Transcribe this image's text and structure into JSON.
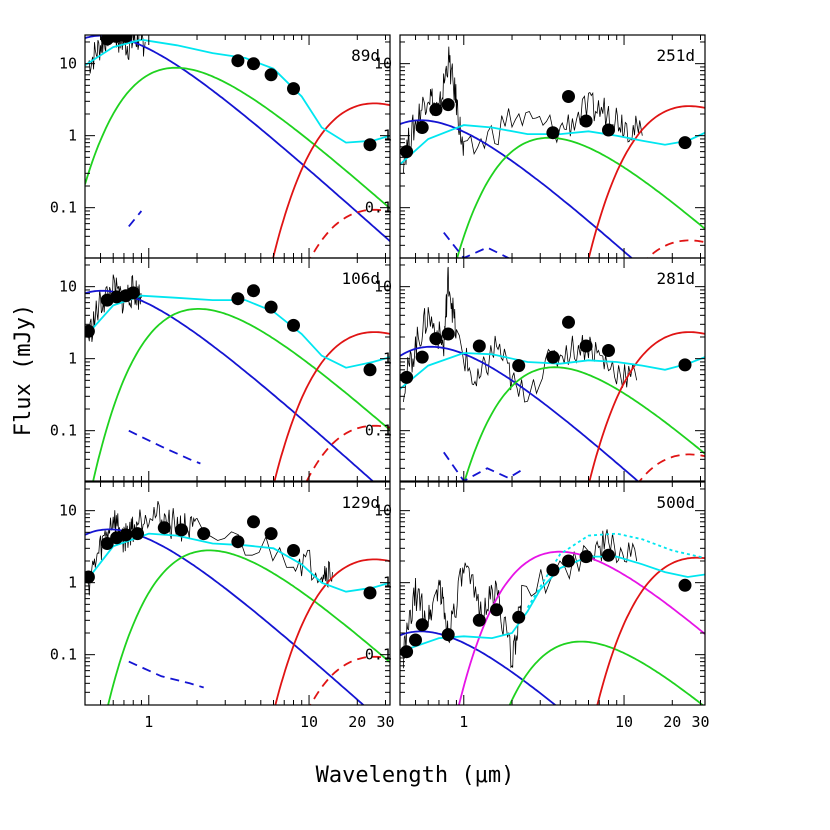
{
  "chart_data": {
    "type": "line",
    "ylabel": "Flux (mJy)",
    "xlabel": "Wavelength (μm)",
    "x_axis": {
      "scale": "log",
      "range": [
        0.4,
        32
      ],
      "tick_labels": [
        "1",
        "10",
        "20",
        "30"
      ]
    },
    "y_axis": {
      "scale": "log",
      "range": [
        0.02,
        25
      ],
      "tick_labels": [
        "0.1",
        "1",
        "10"
      ]
    },
    "colors": {
      "blue": "#1414d2",
      "cyan": "#00e6f0",
      "green": "#1fd21f",
      "red": "#e01414",
      "magenta": "#e614e6",
      "black": "#000000"
    },
    "panels": [
      {
        "label": "89d",
        "points": [
          [
            0.55,
            22
          ],
          [
            0.63,
            24
          ],
          [
            0.72,
            24
          ],
          [
            3.6,
            11
          ],
          [
            4.5,
            10
          ],
          [
            5.8,
            7
          ],
          [
            8.0,
            4.5
          ],
          [
            24,
            0.75
          ]
        ],
        "curves": {
          "blue_hot": {
            "peak_x": 0.9,
            "peak_y": 21
          },
          "green_warm": {
            "peak_x": 2.6,
            "peak_y": 7.5
          },
          "red_cold": {
            "peak_x": 45,
            "peak_y": 2.4
          },
          "red_dashed": {
            "peak_x": 45,
            "peak_y": 0.08
          },
          "cyan_total": [
            [
              0.4,
              9.5
            ],
            [
              0.6,
              17
            ],
            [
              0.9,
              21.5
            ],
            [
              1.5,
              18
            ],
            [
              2.5,
              14
            ],
            [
              4,
              12
            ],
            [
              6,
              8.5
            ],
            [
              9,
              3.5
            ],
            [
              12,
              1.3
            ],
            [
              17,
              0.8
            ],
            [
              25,
              0.85
            ],
            [
              32,
              1
            ]
          ],
          "blue_dashed": [
            [
              0.75,
              0.055
            ],
            [
              0.9,
              0.09
            ]
          ],
          "spectrum": [
            [
              0.42,
              10
            ],
            [
              0.5,
              18
            ],
            [
              0.58,
              30
            ],
            [
              0.65,
              22
            ],
            [
              0.75,
              18
            ],
            [
              0.85,
              23
            ],
            [
              0.95,
              20
            ]
          ]
        }
      },
      {
        "label": "251d",
        "points": [
          [
            0.44,
            0.6
          ],
          [
            0.55,
            1.3
          ],
          [
            0.67,
            2.3
          ],
          [
            0.8,
            2.7
          ],
          [
            3.6,
            1.1
          ],
          [
            4.5,
            3.5
          ],
          [
            5.8,
            1.6
          ],
          [
            8.0,
            1.2
          ],
          [
            24,
            0.8
          ]
        ],
        "curves": {
          "blue_hot": {
            "peak_x": 0.95,
            "peak_y": 1.4
          },
          "green_warm": {
            "peak_x": 6.0,
            "peak_y": 0.8
          },
          "red_cold": {
            "peak_x": 45,
            "peak_y": 2.2
          },
          "red_dashed": {
            "peak_x": 45,
            "peak_y": 0.03
          },
          "cyan_total": [
            [
              0.4,
              0.4
            ],
            [
              0.6,
              0.9
            ],
            [
              1.0,
              1.4
            ],
            [
              1.5,
              1.3
            ],
            [
              2.5,
              1.05
            ],
            [
              4,
              1.05
            ],
            [
              6,
              1.15
            ],
            [
              9,
              1.0
            ],
            [
              13,
              0.85
            ],
            [
              18,
              0.75
            ],
            [
              25,
              0.85
            ],
            [
              32,
              1.1
            ]
          ],
          "blue_dashed": [
            [
              0.75,
              0.045
            ],
            [
              1.0,
              0.02
            ],
            [
              1.4,
              0.028
            ],
            [
              1.9,
              0.02
            ]
          ],
          "spectrum": [
            [
              0.42,
              0.5
            ],
            [
              0.5,
              1.5
            ],
            [
              0.6,
              4
            ],
            [
              0.7,
              2
            ],
            [
              0.8,
              12
            ],
            [
              0.9,
              3
            ],
            [
              1.0,
              0.5
            ],
            [
              2,
              1.8
            ],
            [
              4,
              1.2
            ],
            [
              6,
              2.4
            ],
            [
              8,
              2.2
            ],
            [
              10,
              1.5
            ],
            [
              13,
              1.0
            ]
          ]
        }
      },
      {
        "label": "106d",
        "points": [
          [
            0.42,
            2.4
          ],
          [
            0.55,
            6.5
          ],
          [
            0.63,
            7.2
          ],
          [
            0.72,
            7.5
          ],
          [
            0.8,
            8.2
          ],
          [
            3.6,
            6.8
          ],
          [
            4.5,
            8.8
          ],
          [
            5.8,
            5.2
          ],
          [
            8.0,
            2.9
          ],
          [
            24,
            0.7
          ]
        ],
        "curves": {
          "blue_hot": {
            "peak_x": 0.9,
            "peak_y": 7.5
          },
          "green_warm": {
            "peak_x": 3.6,
            "peak_y": 4.2
          },
          "red_cold": {
            "peak_x": 45,
            "peak_y": 2.0
          },
          "red_dashed": {
            "peak_x": 45,
            "peak_y": 0.1
          },
          "cyan_total": [
            [
              0.4,
              2.0
            ],
            [
              0.6,
              5.5
            ],
            [
              0.9,
              7.5
            ],
            [
              1.5,
              7
            ],
            [
              2.5,
              6.5
            ],
            [
              4,
              6.5
            ],
            [
              6,
              4.5
            ],
            [
              9,
              2.2
            ],
            [
              12,
              1.1
            ],
            [
              17,
              0.75
            ],
            [
              25,
              0.9
            ],
            [
              32,
              1.05
            ]
          ],
          "blue_dashed": [
            [
              0.75,
              0.1
            ],
            [
              1.2,
              0.06
            ],
            [
              1.8,
              0.04
            ],
            [
              2.1,
              0.035
            ]
          ],
          "spectrum": [
            [
              0.42,
              2
            ],
            [
              0.5,
              6
            ],
            [
              0.6,
              9
            ],
            [
              0.7,
              6.5
            ],
            [
              0.8,
              9
            ],
            [
              0.9,
              7
            ]
          ]
        }
      },
      {
        "label": "281d",
        "points": [
          [
            0.44,
            0.55
          ],
          [
            0.55,
            1.05
          ],
          [
            0.67,
            1.9
          ],
          [
            0.8,
            2.2
          ],
          [
            1.25,
            1.5
          ],
          [
            2.2,
            0.8
          ],
          [
            3.6,
            1.05
          ],
          [
            4.5,
            3.2
          ],
          [
            5.8,
            1.5
          ],
          [
            8.0,
            1.3
          ],
          [
            24,
            0.82
          ]
        ],
        "curves": {
          "blue_hot": {
            "peak_x": 1.1,
            "peak_y": 1.25
          },
          "green_warm": {
            "peak_x": 6.5,
            "peak_y": 0.65
          },
          "red_cold": {
            "peak_x": 45,
            "peak_y": 2.0
          },
          "red_dashed": {
            "peak_x": 45,
            "peak_y": 0.04
          },
          "cyan_total": [
            [
              0.4,
              0.38
            ],
            [
              0.6,
              0.8
            ],
            [
              1.0,
              1.2
            ],
            [
              1.5,
              1.15
            ],
            [
              2.5,
              0.9
            ],
            [
              4,
              0.85
            ],
            [
              6,
              0.95
            ],
            [
              9,
              0.9
            ],
            [
              13,
              0.8
            ],
            [
              18,
              0.7
            ],
            [
              25,
              0.85
            ],
            [
              32,
              1.05
            ]
          ],
          "blue_dashed": [
            [
              0.75,
              0.05
            ],
            [
              1.0,
              0.02
            ],
            [
              1.4,
              0.03
            ],
            [
              1.9,
              0.022
            ],
            [
              2.4,
              0.03
            ]
          ],
          "spectrum": [
            [
              0.42,
              0.4
            ],
            [
              0.5,
              1.5
            ],
            [
              0.6,
              4
            ],
            [
              0.75,
              1.5
            ],
            [
              0.8,
              14
            ],
            [
              0.9,
              2
            ],
            [
              1.2,
              0.4
            ],
            [
              1.6,
              1.6
            ],
            [
              2.2,
              0.3
            ],
            [
              4,
              1.2
            ],
            [
              6,
              1.6
            ],
            [
              8,
              0.8
            ],
            [
              12,
              0.5
            ]
          ]
        }
      },
      {
        "label": "129d",
        "points": [
          [
            0.42,
            1.2
          ],
          [
            0.55,
            3.5
          ],
          [
            0.63,
            4.2
          ],
          [
            0.72,
            4.6
          ],
          [
            0.85,
            4.8
          ],
          [
            1.25,
            5.8
          ],
          [
            1.6,
            5.4
          ],
          [
            2.2,
            4.8
          ],
          [
            3.6,
            3.7
          ],
          [
            4.5,
            7.0
          ],
          [
            5.8,
            4.8
          ],
          [
            8.0,
            2.8
          ],
          [
            24,
            0.72
          ]
        ],
        "curves": {
          "blue_hot": {
            "peak_x": 1.0,
            "peak_y": 4.7
          },
          "green_warm": {
            "peak_x": 4.2,
            "peak_y": 2.4
          },
          "red_cold": {
            "peak_x": 45,
            "peak_y": 1.8
          },
          "red_dashed": {
            "peak_x": 45,
            "peak_y": 0.08
          },
          "cyan_total": [
            [
              0.4,
              1.0
            ],
            [
              0.6,
              3.2
            ],
            [
              1.0,
              4.8
            ],
            [
              1.5,
              4.5
            ],
            [
              2.5,
              3.5
            ],
            [
              4,
              3.3
            ],
            [
              6,
              3.0
            ],
            [
              9,
              1.8
            ],
            [
              12,
              1.0
            ],
            [
              17,
              0.75
            ],
            [
              25,
              0.85
            ],
            [
              32,
              1.0
            ]
          ],
          "blue_dashed": [
            [
              0.75,
              0.08
            ],
            [
              1.2,
              0.05
            ],
            [
              1.8,
              0.04
            ],
            [
              2.2,
              0.035
            ]
          ],
          "spectrum": [
            [
              0.42,
              1
            ],
            [
              0.5,
              3
            ],
            [
              0.6,
              8
            ],
            [
              0.7,
              4
            ],
            [
              0.8,
              6
            ],
            [
              1.0,
              10
            ],
            [
              1.3,
              7
            ],
            [
              1.6,
              6
            ],
            [
              2.0,
              5
            ],
            [
              8,
              2.3
            ],
            [
              12,
              1.5
            ],
            [
              14,
              1.4
            ]
          ]
        }
      },
      {
        "label": "500d",
        "points": [
          [
            0.44,
            0.11
          ],
          [
            0.5,
            0.16
          ],
          [
            0.55,
            0.26
          ],
          [
            0.8,
            0.19
          ],
          [
            1.25,
            0.3
          ],
          [
            1.6,
            0.42
          ],
          [
            2.2,
            0.33
          ],
          [
            3.6,
            1.5
          ],
          [
            4.5,
            2.0
          ],
          [
            5.8,
            2.3
          ],
          [
            8.0,
            2.4
          ],
          [
            24,
            0.92
          ]
        ],
        "curves": {
          "blue_hot": {
            "peak_x": 0.95,
            "peak_y": 0.18
          },
          "green_warm": {
            "peak_x": 9.5,
            "peak_y": 0.13
          },
          "magenta_warm": {
            "peak_x": 7.0,
            "peak_y": 2.3
          },
          "red_cold": {
            "peak_x": 50,
            "peak_y": 1.9
          },
          "cyan_total": [
            [
              0.4,
              0.11
            ],
            [
              0.7,
              0.17
            ],
            [
              1.0,
              0.18
            ],
            [
              1.5,
              0.17
            ],
            [
              2.0,
              0.2
            ],
            [
              2.5,
              0.4
            ],
            [
              3,
              0.8
            ],
            [
              4,
              1.6
            ],
            [
              6,
              2.3
            ],
            [
              9,
              2.3
            ],
            [
              13,
              1.8
            ],
            [
              18,
              1.4
            ],
            [
              25,
              1.2
            ],
            [
              32,
              1.3
            ]
          ],
          "cyan_dotted": [
            [
              2.5,
              0.45
            ],
            [
              4,
              2.5
            ],
            [
              6,
              4.5
            ],
            [
              9,
              4.8
            ],
            [
              13,
              4
            ],
            [
              20,
              2.8
            ],
            [
              32,
              2.2
            ]
          ],
          "spectrum": [
            [
              0.42,
              0.1
            ],
            [
              0.5,
              0.7
            ],
            [
              0.6,
              0.3
            ],
            [
              0.7,
              1.0
            ],
            [
              0.8,
              0.2
            ],
            [
              1.0,
              1.5
            ],
            [
              1.3,
              0.4
            ],
            [
              1.6,
              0.8
            ],
            [
              2.0,
              0.08
            ],
            [
              2.3,
              0.6
            ],
            [
              6,
              2.8
            ],
            [
              8,
              3.5
            ],
            [
              12,
              2.0
            ]
          ]
        }
      }
    ]
  }
}
